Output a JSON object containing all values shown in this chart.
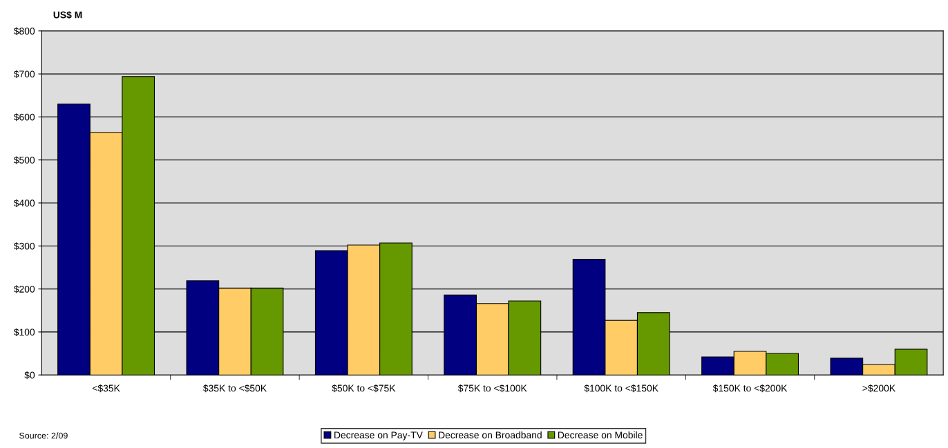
{
  "chart_data": {
    "type": "bar",
    "ylabel": "US$ M",
    "categories": [
      "<$35K",
      "$35K to <$50K",
      "$50K to <$75K",
      "$75K to <$100K",
      "$100K to <$150K",
      "$150K to <$200K",
      ">$200K"
    ],
    "series": [
      {
        "name": "Decrease on Pay-TV",
        "color": "#000080",
        "values": [
          630,
          219,
          289,
          186,
          269,
          42,
          39
        ]
      },
      {
        "name": "Decrease on Broadband",
        "color": "#ffcc66",
        "values": [
          564,
          202,
          302,
          166,
          127,
          55,
          24
        ]
      },
      {
        "name": "Decrease on Mobile",
        "color": "#669900",
        "values": [
          694,
          202,
          307,
          172,
          145,
          50,
          60
        ]
      }
    ],
    "ylim": [
      0,
      800
    ],
    "yticks": [
      {
        "value": 0,
        "label": "$0"
      },
      {
        "value": 100,
        "label": "$100"
      },
      {
        "value": 200,
        "label": "$200"
      },
      {
        "value": 300,
        "label": "$300"
      },
      {
        "value": 400,
        "label": "$400"
      },
      {
        "value": 500,
        "label": "$500"
      },
      {
        "value": 600,
        "label": "$600"
      },
      {
        "value": 700,
        "label": "$700"
      },
      {
        "value": 800,
        "label": "$800"
      }
    ],
    "grid": "y",
    "legend": "bottom",
    "annotations": [
      "Source: 2/09"
    ]
  }
}
